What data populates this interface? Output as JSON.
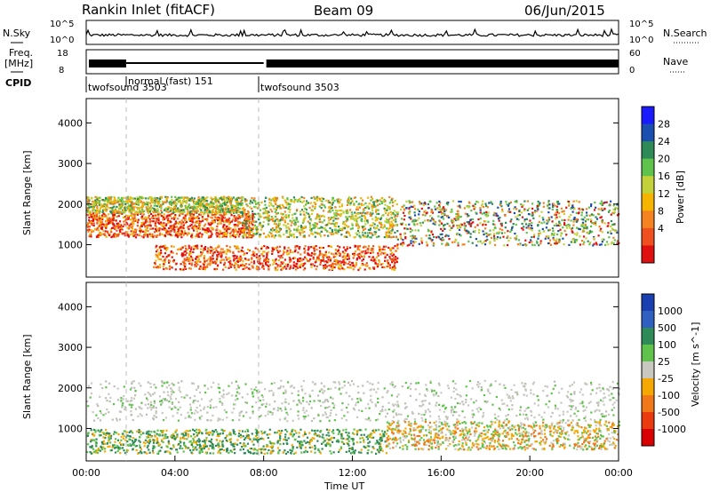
{
  "header": {
    "station": "Rankin Inlet (fitACF)",
    "beam": "Beam 09",
    "date": "06/Jun/2015"
  },
  "panels": {
    "nsky": {
      "left_label": "N.Sky",
      "right_label": "N.Search",
      "left_ticks": [
        "10^5",
        "10^0"
      ],
      "right_ticks": [
        "10^5",
        "10^0"
      ]
    },
    "freq": {
      "left_label_1": "Freq.",
      "left_label_2": "[MHz]",
      "right_label": "Nave",
      "left_ticks": [
        "18",
        "8"
      ],
      "right_ticks": [
        "60",
        "0"
      ]
    },
    "cpid": {
      "label": "CPID",
      "modes": [
        {
          "name": "twofsound 3503",
          "start_ut": "00:00"
        },
        {
          "name": "normal (fast) 151",
          "start_ut": "02:00"
        },
        {
          "name": "twofsound 3503",
          "start_ut": "08:00"
        }
      ]
    }
  },
  "chart_data": [
    {
      "type": "heatmap",
      "title": "",
      "xlabel": "",
      "ylabel": "Slant Range [km]",
      "xlim": [
        "00:00",
        "24:00"
      ],
      "ylim": [
        200,
        4600
      ],
      "yticks": [
        "4000",
        "3000",
        "2000",
        "1000"
      ],
      "colorbar": {
        "label": "Power [dB]",
        "ticks": [
          "28",
          "24",
          "20",
          "16",
          "12",
          "8",
          "4"
        ],
        "range": [
          0,
          32
        ],
        "colors": [
          "#1a1aff",
          "#1a4fb0",
          "#2e8b57",
          "#5fc24a",
          "#c4d23a",
          "#f4b400",
          "#f58220",
          "#f05020",
          "#e01010"
        ]
      },
      "regions": [
        {
          "t0": 0.0,
          "t1": 7.5,
          "r0": 1200,
          "r1": 1800,
          "level": "high"
        },
        {
          "t0": 0.0,
          "t1": 7.0,
          "r0": 1800,
          "r1": 2200,
          "level": "medium"
        },
        {
          "t0": 3.0,
          "t1": 14.0,
          "r0": 400,
          "r1": 1000,
          "level": "high"
        },
        {
          "t0": 7.0,
          "t1": 14.0,
          "r0": 1200,
          "r1": 2200,
          "level": "medium"
        },
        {
          "t0": 14.0,
          "t1": 24.0,
          "r0": 1000,
          "r1": 2100,
          "level": "mixed"
        }
      ]
    },
    {
      "type": "heatmap",
      "title": "",
      "xlabel": "Time UT",
      "ylabel": "Slant Range [km]",
      "xlim": [
        "00:00",
        "24:00"
      ],
      "ylim": [
        200,
        4600
      ],
      "xticks": [
        "00:00",
        "04:00",
        "08:00",
        "12:00",
        "16:00",
        "20:00",
        "00:00"
      ],
      "yticks": [
        "4000",
        "3000",
        "2000",
        "1000"
      ],
      "colorbar": {
        "label": "Velocity [m s^-1]",
        "ticks": [
          "1000",
          "500",
          "100",
          "25",
          "-25",
          "-100",
          "-500",
          "-1000"
        ],
        "colors": [
          "#1a3fb0",
          "#2f5fc0",
          "#2e8b57",
          "#5fc24a",
          "#c8c8c0",
          "#f4a800",
          "#f07818",
          "#ec3a10",
          "#d80000"
        ]
      },
      "regions": [
        {
          "t0": 0.0,
          "t1": 24.0,
          "r0": 1200,
          "r1": 2200,
          "level": "ground-scatter"
        },
        {
          "t0": 0.0,
          "t1": 13.5,
          "r0": 400,
          "r1": 1000,
          "level": "positive"
        },
        {
          "t0": 13.5,
          "t1": 24.0,
          "r0": 500,
          "r1": 1200,
          "level": "negative"
        }
      ]
    }
  ]
}
